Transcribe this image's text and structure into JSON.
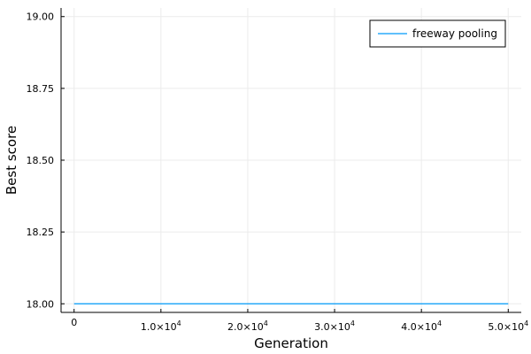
{
  "chart_data": {
    "type": "line",
    "title": "",
    "xlabel": "Generation",
    "ylabel": "Best score",
    "xlim": [
      -1500,
      51500
    ],
    "ylim": [
      17.97,
      19.03
    ],
    "x_ticks": [
      {
        "value": 0,
        "mantissa": "0",
        "exponent": ""
      },
      {
        "value": 10000,
        "mantissa": "1.0×10",
        "exponent": "4"
      },
      {
        "value": 20000,
        "mantissa": "2.0×10",
        "exponent": "4"
      },
      {
        "value": 30000,
        "mantissa": "3.0×10",
        "exponent": "4"
      },
      {
        "value": 40000,
        "mantissa": "4.0×10",
        "exponent": "4"
      },
      {
        "value": 50000,
        "mantissa": "5.0×10",
        "exponent": "4"
      }
    ],
    "y_ticks": [
      {
        "value": 18.0,
        "label": "18.00"
      },
      {
        "value": 18.25,
        "label": "18.25"
      },
      {
        "value": 18.5,
        "label": "18.50"
      },
      {
        "value": 18.75,
        "label": "18.75"
      },
      {
        "value": 19.0,
        "label": "19.00"
      }
    ],
    "grid": true,
    "legend_position": "top-right",
    "series": [
      {
        "name": "freeway pooling",
        "color": "#009af9",
        "x": [
          0,
          50000
        ],
        "y": [
          18.0,
          18.0
        ]
      }
    ]
  }
}
